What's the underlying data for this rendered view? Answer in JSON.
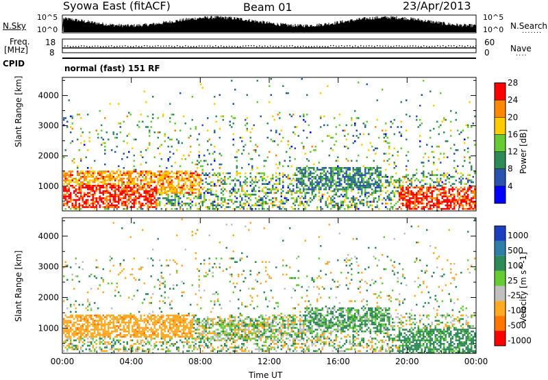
{
  "header": {
    "station": "Syowa East (fitACF)",
    "beam": "Beam 01",
    "date": "23/Apr/2013"
  },
  "status_panels": {
    "nsky_label": "N.Sky",
    "nsky_ticks": [
      "10^5",
      "10^0"
    ],
    "nsearch_label": "N.Search",
    "nsearch_ticks": [
      "10^5",
      "10^0"
    ],
    "freq_label_1": "Freq.",
    "freq_label_2": "[MHz]",
    "freq_ticks": [
      "18",
      "8"
    ],
    "nave_label": "Nave",
    "nave_ticks": [
      "60",
      "0"
    ],
    "cpid_label": "CPID",
    "cpid_text": "normal (fast) 151 RF"
  },
  "chart_data": [
    {
      "type": "heatmap",
      "parameter": "Power",
      "ylabel": "Slant Range [km]",
      "xlabel": "",
      "x_ticks": [
        "00:00",
        "04:00",
        "08:00",
        "12:00",
        "16:00",
        "20:00",
        "00:00"
      ],
      "x_range_hours": [
        0,
        24
      ],
      "y_ticks": [
        1000,
        2000,
        3000,
        4000
      ],
      "ylim": [
        180,
        4600
      ],
      "colorbar": {
        "label": "Power [dB]",
        "ticks": [
          4,
          8,
          12,
          16,
          20,
          24,
          28
        ],
        "range": [
          0,
          30
        ],
        "colors": [
          "#0000ff",
          "#2a52b0",
          "#2e8b57",
          "#66cc33",
          "#ffcc00",
          "#ff8800",
          "#ff0000"
        ]
      },
      "features": [
        {
          "t_start": 0.0,
          "t_end": 8.0,
          "range_km": 1150,
          "typical_value": 22
        },
        {
          "t_start": 0.0,
          "t_end": 5.5,
          "range_km": 700,
          "typical_value": 27
        },
        {
          "t_start": 13.5,
          "t_end": 18.5,
          "range_km": 1300,
          "typical_value": 10
        },
        {
          "t_start": 19.5,
          "t_end": 24.0,
          "range_km": 650,
          "typical_value": 27
        }
      ]
    },
    {
      "type": "heatmap",
      "parameter": "Velocity",
      "ylabel": "Slant Range [km]",
      "xlabel": "Time UT",
      "x_ticks": [
        "00:00",
        "04:00",
        "08:00",
        "12:00",
        "16:00",
        "20:00",
        "00:00"
      ],
      "x_range_hours": [
        0,
        24
      ],
      "y_ticks": [
        1000,
        2000,
        3000,
        4000
      ],
      "ylim": [
        180,
        4600
      ],
      "colorbar": {
        "label": "Velocity [m s^-1]",
        "ticks": [
          "1000",
          "500",
          "100",
          "25",
          "-25",
          "-100",
          "-500",
          "-1000"
        ],
        "colors": [
          "#1a3fbf",
          "#2f7fa8",
          "#2e8b57",
          "#66cc33",
          "#c0c0c0",
          "#ffaa22",
          "#ff7700",
          "#ff0000"
        ]
      },
      "features": [
        {
          "t_start": 0.0,
          "t_end": 7.5,
          "range_km": 1100,
          "typical_value": -200
        },
        {
          "t_start": 7.5,
          "t_end": 14.0,
          "range_km": 1000,
          "typical_value": 0
        },
        {
          "t_start": 14.0,
          "t_end": 19.0,
          "range_km": 1300,
          "typical_value": 80
        },
        {
          "t_start": 19.5,
          "t_end": 24.0,
          "range_km": 600,
          "typical_value": 150
        }
      ]
    }
  ]
}
